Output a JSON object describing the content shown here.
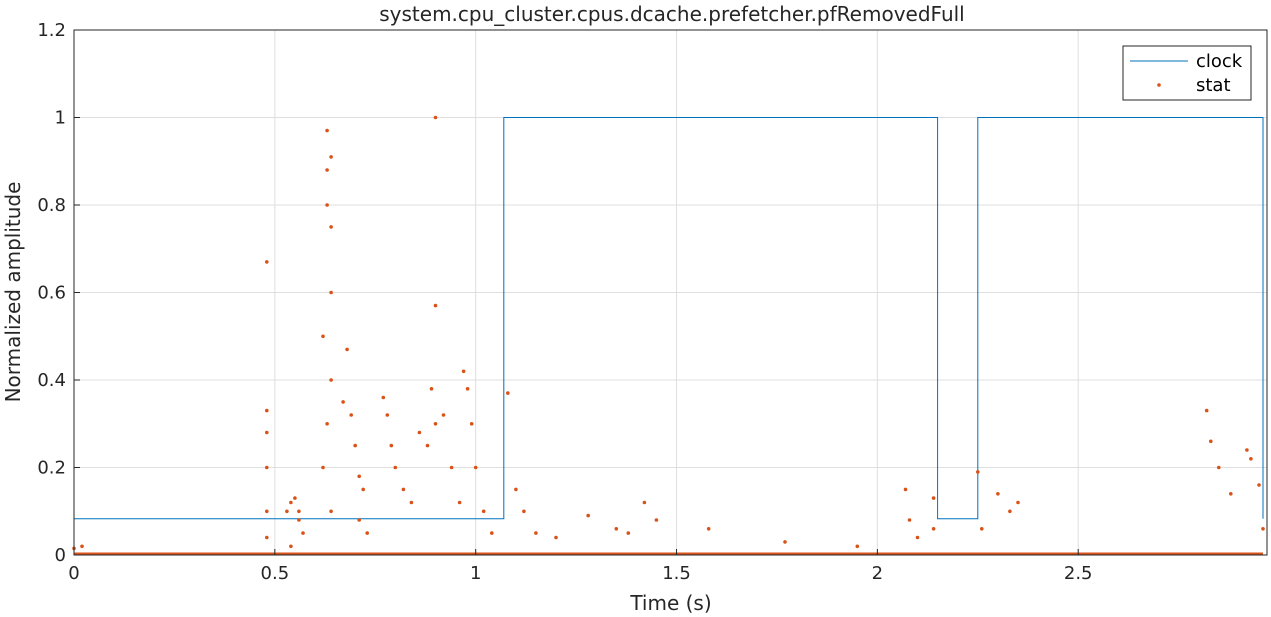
{
  "chart_data": {
    "type": "line",
    "title": "system.cpu_cluster.cpus.dcache.prefetcher.pfRemovedFull",
    "xlabel": "Time (s)",
    "ylabel": "Normalized amplitude",
    "xlim": [
      0,
      2.97
    ],
    "ylim": [
      0,
      1.2
    ],
    "grid": true,
    "legend_position": "top-right",
    "x_ticks": [
      {
        "value": 0,
        "label": "0"
      },
      {
        "value": 0.5,
        "label": "0.5"
      },
      {
        "value": 1,
        "label": "1"
      },
      {
        "value": 1.5,
        "label": "1.5"
      },
      {
        "value": 2,
        "label": "2"
      },
      {
        "value": 2.5,
        "label": "2.5"
      }
    ],
    "y_ticks": [
      {
        "value": 0,
        "label": "0"
      },
      {
        "value": 0.2,
        "label": "0.2"
      },
      {
        "value": 0.4,
        "label": "0.4"
      },
      {
        "value": 0.6,
        "label": "0.6"
      },
      {
        "value": 0.8,
        "label": "0.8"
      },
      {
        "value": 1,
        "label": "1"
      },
      {
        "value": 1.2,
        "label": "1.2"
      }
    ],
    "series": [
      {
        "name": "clock",
        "kind": "step-line",
        "color": "#0072bd",
        "x": [
          0,
          1.07,
          1.07,
          2.15,
          2.15,
          2.25,
          2.25,
          2.96,
          2.96
        ],
        "y": [
          0.083,
          0.083,
          1.0,
          1.0,
          0.083,
          0.083,
          1.0,
          1.0,
          0.083
        ]
      },
      {
        "name": "stat",
        "kind": "scatter",
        "color": "#d95319",
        "x": [
          0.0,
          0.02,
          0.48,
          0.48,
          0.48,
          0.48,
          0.48,
          0.48,
          0.53,
          0.54,
          0.55,
          0.56,
          0.57,
          0.54,
          0.56,
          0.62,
          0.63,
          0.63,
          0.63,
          0.64,
          0.64,
          0.64,
          0.64,
          0.63,
          0.62,
          0.64,
          0.68,
          0.67,
          0.69,
          0.7,
          0.71,
          0.72,
          0.71,
          0.73,
          0.77,
          0.78,
          0.79,
          0.8,
          0.82,
          0.84,
          0.86,
          0.88,
          0.89,
          0.9,
          0.9,
          0.9,
          0.92,
          0.94,
          0.96,
          0.97,
          0.98,
          0.99,
          1.0,
          1.02,
          1.04,
          1.08,
          1.1,
          1.12,
          1.15,
          1.2,
          1.28,
          1.35,
          1.38,
          1.42,
          1.45,
          1.58,
          1.77,
          1.95,
          2.07,
          2.08,
          2.1,
          2.14,
          2.14,
          2.25,
          2.26,
          2.3,
          2.33,
          2.35,
          2.82,
          2.83,
          2.85,
          2.88,
          2.92,
          2.93,
          2.95,
          2.96
        ],
        "y": [
          0.015,
          0.02,
          0.67,
          0.33,
          0.28,
          0.2,
          0.1,
          0.04,
          0.1,
          0.12,
          0.13,
          0.1,
          0.05,
          0.02,
          0.08,
          0.5,
          0.97,
          0.88,
          0.8,
          0.91,
          0.75,
          0.6,
          0.4,
          0.3,
          0.2,
          0.1,
          0.47,
          0.35,
          0.32,
          0.25,
          0.18,
          0.15,
          0.08,
          0.05,
          0.36,
          0.32,
          0.25,
          0.2,
          0.15,
          0.12,
          0.28,
          0.25,
          0.38,
          1.0,
          0.57,
          0.3,
          0.32,
          0.2,
          0.12,
          0.42,
          0.38,
          0.3,
          0.2,
          0.1,
          0.05,
          0.37,
          0.15,
          0.1,
          0.05,
          0.04,
          0.09,
          0.06,
          0.05,
          0.12,
          0.08,
          0.06,
          0.03,
          0.02,
          0.15,
          0.08,
          0.04,
          0.13,
          0.06,
          0.19,
          0.06,
          0.14,
          0.1,
          0.12,
          0.33,
          0.26,
          0.2,
          0.14,
          0.24,
          0.22,
          0.16,
          0.06
        ]
      }
    ]
  }
}
